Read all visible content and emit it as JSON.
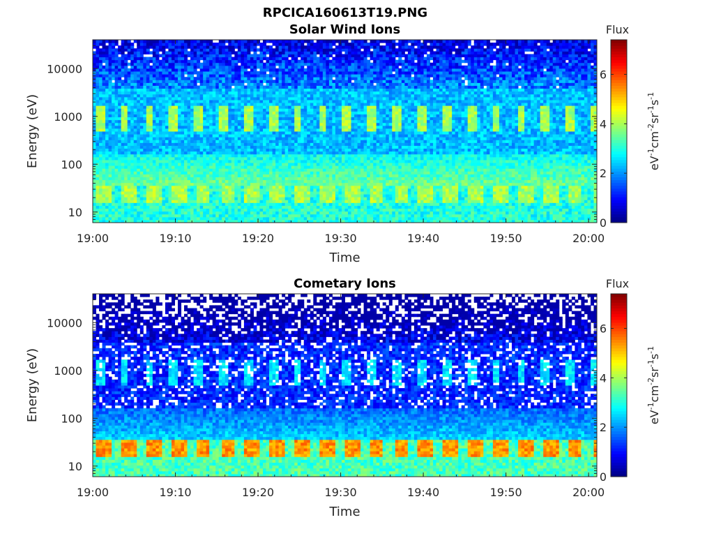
{
  "figure": {
    "title": "RPCICA160613T19.PNG"
  },
  "chart_data": [
    {
      "type": "heatmap",
      "title": "Solar Wind Ions",
      "xlabel": "Time",
      "ylabel": "Energy (eV)",
      "x_ticks": [
        "19:00",
        "19:10",
        "19:20",
        "19:30",
        "19:40",
        "19:50",
        "20:00"
      ],
      "y_ticks": [
        "10",
        "100",
        "1000",
        "10000"
      ],
      "y_scale": "log",
      "xlim": [
        "19:00",
        "20:01"
      ],
      "ylim": [
        6,
        40000
      ],
      "colorbar": {
        "title": "Flux",
        "label": "eV-1cm-2sr-1s-1",
        "ticks": [
          "0",
          "2",
          "4",
          "6"
        ],
        "range": [
          0,
          7.4
        ],
        "colormap": "jet"
      },
      "features": {
        "pulse_period_min": 3,
        "high_energy_band_eV": 900,
        "high_energy_level": 4.0,
        "low_energy_band_eV": [
          15,
          40
        ],
        "low_energy_level": 4.0,
        "background_level": 2.3
      }
    },
    {
      "type": "heatmap",
      "title": "Cometary Ions",
      "xlabel": "Time",
      "ylabel": "Energy (eV)",
      "x_ticks": [
        "19:00",
        "19:10",
        "19:20",
        "19:30",
        "19:40",
        "19:50",
        "20:00"
      ],
      "y_ticks": [
        "10",
        "100",
        "1000",
        "10000"
      ],
      "y_scale": "log",
      "xlim": [
        "19:00",
        "20:01"
      ],
      "ylim": [
        6,
        40000
      ],
      "colorbar": {
        "title": "Flux",
        "label": "eV-1cm-2sr-1s-1",
        "ticks": [
          "0",
          "2",
          "4",
          "6"
        ],
        "range": [
          0,
          7.4
        ],
        "colormap": "jet"
      },
      "features": {
        "pulse_period_min": 3,
        "high_energy_band_eV": 900,
        "high_energy_level": 2.6,
        "low_energy_band_eV": [
          15,
          40
        ],
        "low_energy_level": 5.4,
        "background_level": 1.2
      }
    }
  ]
}
